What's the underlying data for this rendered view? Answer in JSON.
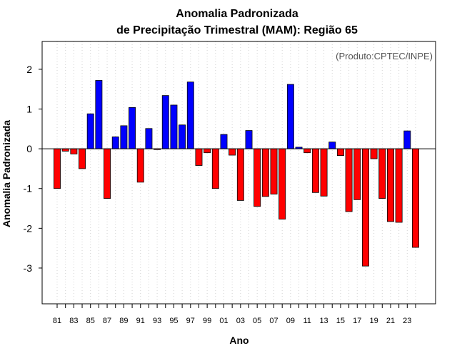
{
  "chart_data": {
    "type": "bar",
    "title": "Anomalia Padronizada",
    "subtitle": "de Precipitação Trimestral (MAM): Região 65",
    "xlabel": "Ano",
    "ylabel": "Anomalia Padronizada",
    "credit": "(Produto:CPTEC/INPE)",
    "ylim": [
      -3.9,
      2.7
    ],
    "yticks": [
      2,
      1,
      0,
      -1,
      -2,
      -3
    ],
    "ytick_labels": [
      "2",
      "1",
      "0",
      "-1",
      "-2",
      "-3"
    ],
    "grid": "vertical dotted",
    "positive_color": "#0000ff",
    "negative_color": "#ff0000",
    "categories": [
      "1981",
      "1982",
      "1983",
      "1984",
      "1985",
      "1986",
      "1987",
      "1988",
      "1989",
      "1990",
      "1991",
      "1992",
      "1993",
      "1994",
      "1995",
      "1996",
      "1997",
      "1998",
      "1999",
      "2000",
      "2001",
      "2002",
      "2003",
      "2004",
      "2005",
      "2006",
      "2007",
      "2008",
      "2009",
      "2010",
      "2011",
      "2012",
      "2013",
      "2014",
      "2015",
      "2016",
      "2017",
      "2018",
      "2019",
      "2020",
      "2021",
      "2022",
      "2023",
      "2024"
    ],
    "xtick_labels": [
      "81",
      "83",
      "85",
      "87",
      "89",
      "91",
      "93",
      "95",
      "97",
      "99",
      "01",
      "03",
      "05",
      "07",
      "09",
      "11",
      "13",
      "15",
      "17",
      "19",
      "21",
      "23"
    ],
    "values": [
      -1.0,
      -0.06,
      -0.13,
      -0.5,
      0.88,
      1.72,
      -1.25,
      0.3,
      0.58,
      1.04,
      -0.84,
      0.51,
      -0.02,
      1.34,
      1.1,
      0.6,
      1.68,
      -0.42,
      -0.1,
      -1.0,
      0.36,
      -0.16,
      -1.3,
      0.46,
      -1.45,
      -1.2,
      -1.14,
      -1.77,
      1.62,
      0.04,
      -0.1,
      -1.1,
      -1.19,
      0.17,
      -0.17,
      -1.58,
      -1.28,
      -2.95,
      -0.25,
      -1.25,
      -1.83,
      -1.85,
      0.45,
      -2.48
    ]
  }
}
